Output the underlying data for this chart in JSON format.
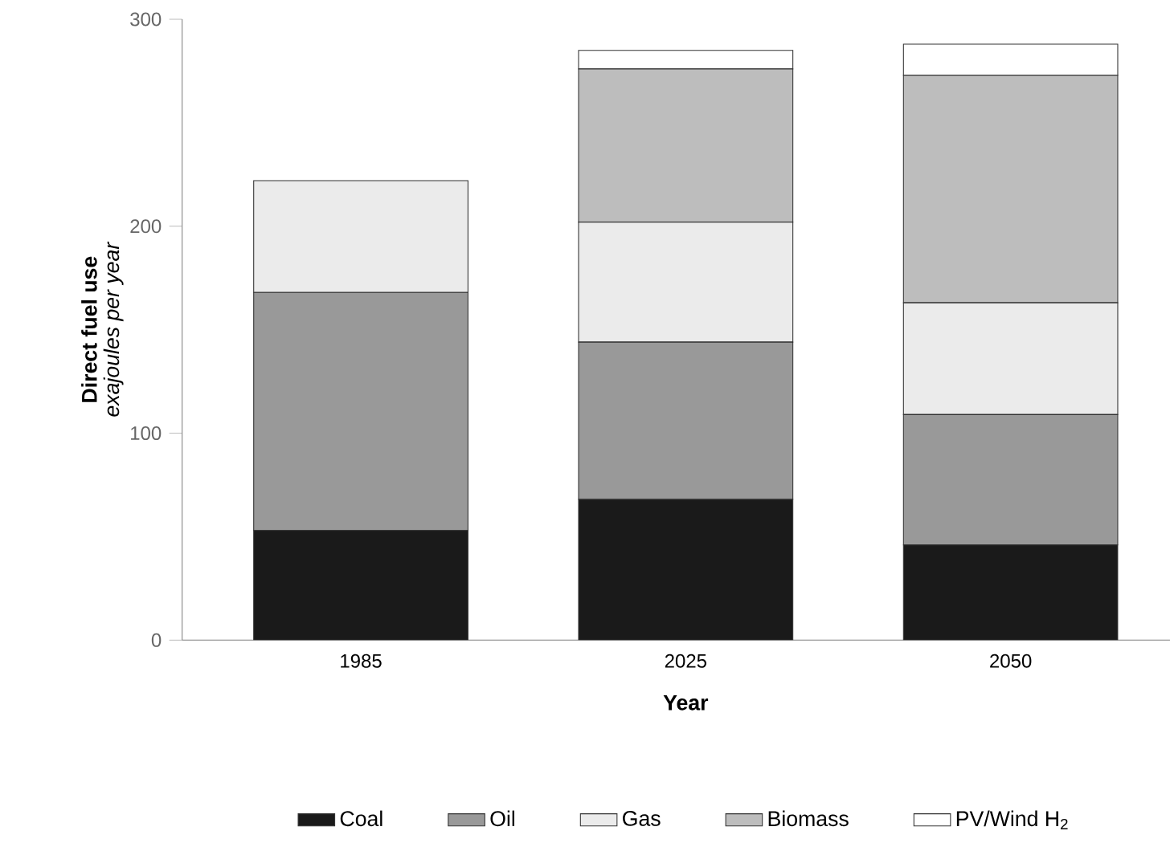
{
  "chart_data": {
    "type": "bar",
    "stacked": true,
    "xlabel": "Year",
    "ylabel": "Direct fuel use",
    "annotations": [
      "exajoules per year"
    ],
    "categories": [
      "1985",
      "2025",
      "2050"
    ],
    "series": [
      {
        "name": "Coal",
        "color": "#1a1a1a",
        "values": [
          53,
          68,
          46
        ]
      },
      {
        "name": "Oil",
        "color": "#999999",
        "values": [
          115,
          76,
          63
        ]
      },
      {
        "name": "Gas",
        "color": "#ebebeb",
        "values": [
          54,
          58,
          54
        ]
      },
      {
        "name": "Biomass",
        "color": "#bdbdbd",
        "values": [
          0,
          74,
          110
        ]
      },
      {
        "name": "PV/Wind H$_{2}$",
        "color": "#ffffff",
        "values": [
          0,
          9,
          15
        ]
      }
    ],
    "ylim": [
      0,
      300
    ],
    "yticks": [
      0,
      100,
      200,
      300
    ],
    "grid": false,
    "legend": "bottom"
  }
}
